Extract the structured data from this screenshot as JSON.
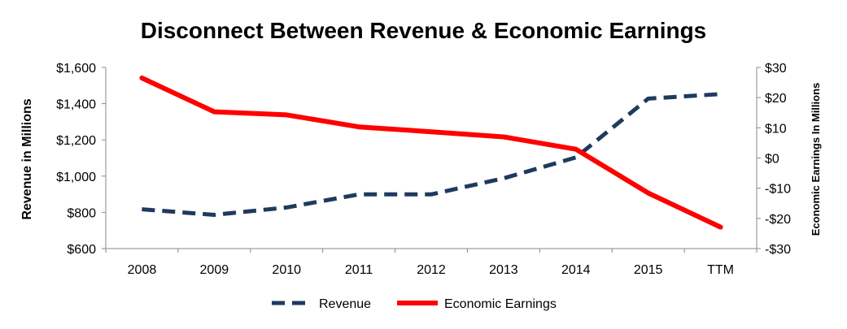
{
  "chart_data": {
    "type": "line",
    "title": "Disconnect Between Revenue & Economic Earnings",
    "categories": [
      "2008",
      "2009",
      "2010",
      "2011",
      "2012",
      "2013",
      "2014",
      "2015",
      "TTM"
    ],
    "y_left": {
      "label": "Revenue in Millions",
      "range": [
        600,
        1600
      ],
      "ticks": [
        600,
        800,
        1000,
        1200,
        1400,
        1600
      ],
      "tick_labels": [
        "$600",
        "$800",
        "$1,000",
        "$1,200",
        "$1,400",
        "$1,600"
      ]
    },
    "y_right": {
      "label": "Economic Earnings In Millions",
      "range": [
        -30,
        30
      ],
      "ticks": [
        -30,
        -20,
        -10,
        0,
        10,
        20,
        30
      ],
      "tick_labels": [
        "-$30",
        "-$20",
        "-$10",
        "$0",
        "$10",
        "$20",
        "$30"
      ]
    },
    "series": [
      {
        "name": "Revenue",
        "axis": "left",
        "style": "dashed",
        "color": "#1f3a5f",
        "values": [
          817,
          786,
          827,
          899,
          899,
          988,
          1103,
          1428,
          1453
        ]
      },
      {
        "name": "Economic Earnings",
        "axis": "right",
        "style": "solid",
        "color": "#ff0000",
        "values": [
          26.5,
          15.3,
          14.3,
          10.3,
          8.7,
          7.0,
          2.9,
          -11.6,
          -22.9
        ]
      }
    ],
    "legend": "bottom",
    "grid": false
  }
}
